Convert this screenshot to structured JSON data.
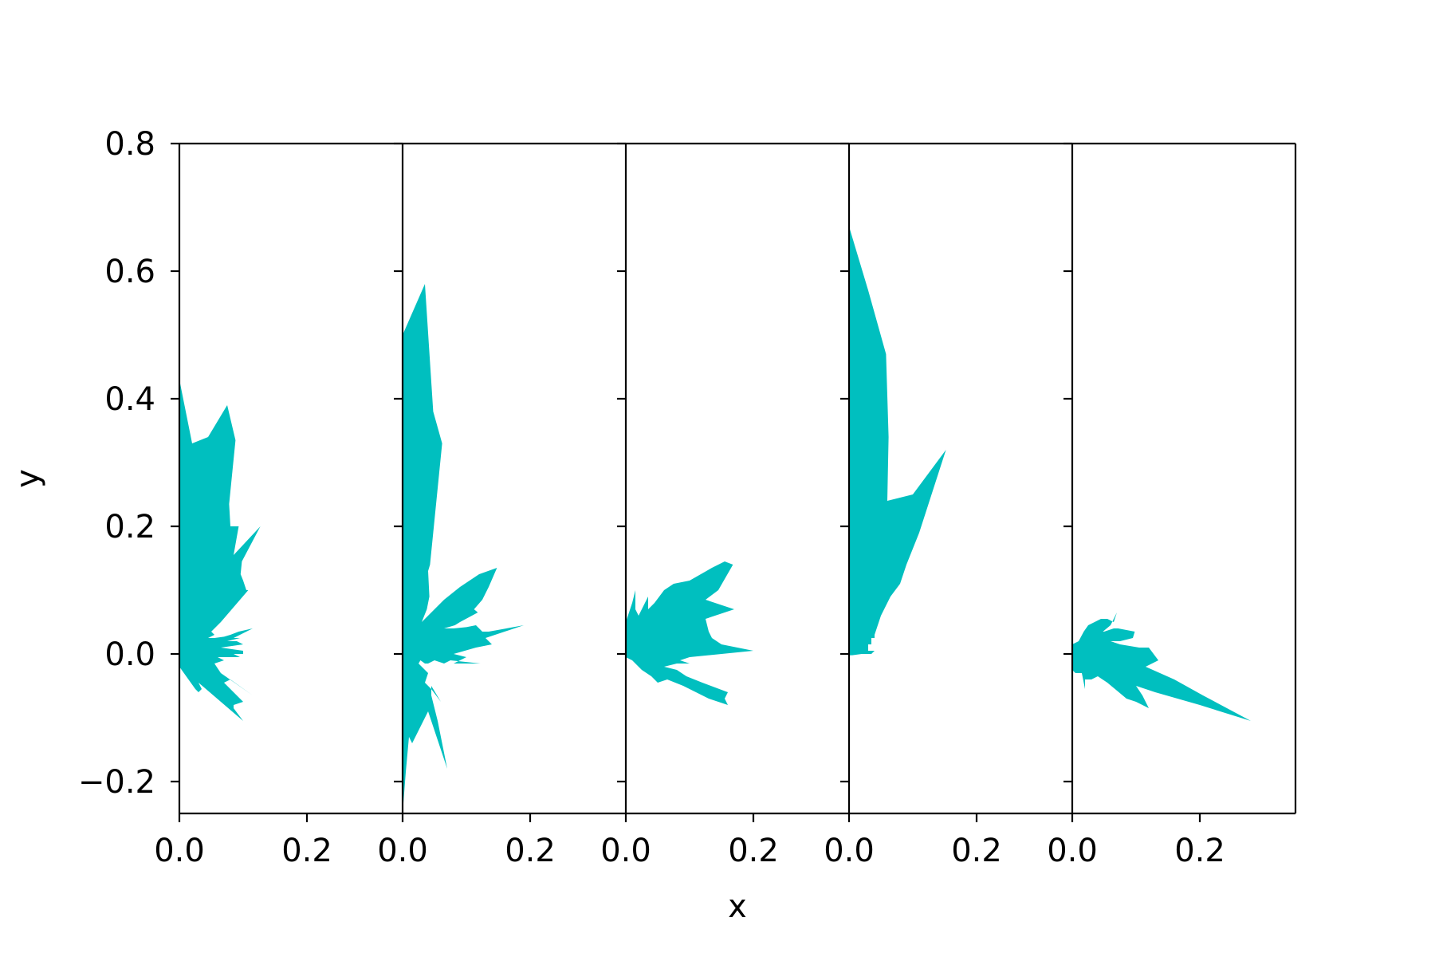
{
  "chart_data": {
    "type": "area",
    "xlabel": "x",
    "ylabel": "y",
    "ylim": [
      -0.25,
      0.8
    ],
    "xlim": [
      0.0,
      0.35
    ],
    "y_ticks": [
      -0.2,
      0.0,
      0.2,
      0.4,
      0.6,
      0.8
    ],
    "y_tick_labels": [
      "−0.2",
      "0.0",
      "0.2",
      "0.4",
      "0.6",
      "0.8"
    ],
    "x_ticks": [
      0.0,
      0.2
    ],
    "x_tick_labels": [
      "0.0",
      "0.2"
    ],
    "fill_color": "#00bfbf",
    "grid": false,
    "panels": [
      {
        "points": [
          [
            0,
            0.43
          ],
          [
            0.02,
            0.33
          ],
          [
            0.045,
            0.34
          ],
          [
            0.075,
            0.39
          ],
          [
            0.088,
            0.335
          ],
          [
            0.078,
            0.235
          ],
          [
            0.08,
            0.2
          ],
          [
            0.093,
            0.2
          ],
          [
            0.085,
            0.155
          ],
          [
            0.127,
            0.2
          ],
          [
            0.098,
            0.145
          ],
          [
            0.096,
            0.125
          ],
          [
            0.1,
            0.115
          ],
          [
            0.105,
            0.1
          ],
          [
            0.108,
            0.1
          ],
          [
            0.065,
            0.05
          ],
          [
            0.05,
            0.035
          ],
          [
            0.055,
            0.03
          ],
          [
            0.045,
            0.025
          ],
          [
            0.055,
            0.025
          ],
          [
            0.07,
            0.027
          ],
          [
            0.08,
            0.03
          ],
          [
            0.093,
            0.035
          ],
          [
            0.115,
            0.04
          ],
          [
            0.085,
            0.025
          ],
          [
            0.095,
            0.025
          ],
          [
            0.075,
            0.02
          ],
          [
            0.09,
            0.02
          ],
          [
            0.1,
            0.015
          ],
          [
            0.065,
            0.01
          ],
          [
            0.1,
            0.005
          ],
          [
            0.1,
            0.0
          ],
          [
            0.065,
            0.0
          ],
          [
            0.085,
            0.0
          ],
          [
            0.095,
            -0.005
          ],
          [
            0.06,
            -0.005
          ],
          [
            0.07,
            -0.01
          ],
          [
            0.055,
            -0.015
          ],
          [
            0.065,
            -0.03
          ],
          [
            0.115,
            -0.065
          ],
          [
            0.08,
            -0.04
          ],
          [
            0.07,
            -0.045
          ],
          [
            0.08,
            -0.055
          ],
          [
            0.1,
            -0.075
          ],
          [
            0.085,
            -0.08
          ],
          [
            0.085,
            -0.085
          ],
          [
            0.1,
            -0.105
          ],
          [
            0.03,
            -0.045
          ],
          [
            0.035,
            -0.055
          ],
          [
            0.03,
            -0.06
          ],
          [
            0.025,
            -0.055
          ],
          [
            0.0,
            -0.02
          ]
        ]
      },
      {
        "points": [
          [
            0,
            0.5
          ],
          [
            0.035,
            0.58
          ],
          [
            0.048,
            0.38
          ],
          [
            0.062,
            0.33
          ],
          [
            0.043,
            0.14
          ],
          [
            0.04,
            0.13
          ],
          [
            0.042,
            0.09
          ],
          [
            0.038,
            0.07
          ],
          [
            0.03,
            0.05
          ],
          [
            0.05,
            0.07
          ],
          [
            0.065,
            0.085
          ],
          [
            0.09,
            0.105
          ],
          [
            0.12,
            0.125
          ],
          [
            0.148,
            0.135
          ],
          [
            0.135,
            0.105
          ],
          [
            0.125,
            0.085
          ],
          [
            0.112,
            0.07
          ],
          [
            0.118,
            0.065
          ],
          [
            0.09,
            0.05
          ],
          [
            0.082,
            0.045
          ],
          [
            0.065,
            0.04
          ],
          [
            0.08,
            0.04
          ],
          [
            0.1,
            0.042
          ],
          [
            0.115,
            0.045
          ],
          [
            0.125,
            0.035
          ],
          [
            0.135,
            0.035
          ],
          [
            0.19,
            0.045
          ],
          [
            0.13,
            0.025
          ],
          [
            0.14,
            0.015
          ],
          [
            0.115,
            0.01
          ],
          [
            0.08,
            0.0
          ],
          [
            0.1,
            -0.005
          ],
          [
            0.08,
            -0.015
          ],
          [
            0.118,
            -0.015
          ],
          [
            0.122,
            -0.015
          ],
          [
            0.075,
            -0.01
          ],
          [
            0.065,
            -0.015
          ],
          [
            0.05,
            -0.01
          ],
          [
            0.04,
            -0.015
          ],
          [
            0.035,
            -0.015
          ],
          [
            0.028,
            -0.01
          ],
          [
            0.025,
            -0.015
          ],
          [
            0.04,
            -0.03
          ],
          [
            0.035,
            -0.045
          ],
          [
            0.045,
            -0.055
          ],
          [
            0.06,
            -0.075
          ],
          [
            0.045,
            -0.05
          ],
          [
            0.045,
            -0.065
          ],
          [
            0.055,
            -0.105
          ],
          [
            0.07,
            -0.18
          ],
          [
            0.04,
            -0.09
          ],
          [
            0.02,
            -0.13
          ],
          [
            0.015,
            -0.14
          ],
          [
            0.01,
            -0.13
          ],
          [
            0.005,
            -0.185
          ],
          [
            0.0,
            -0.25
          ]
        ]
      },
      {
        "points": [
          [
            0,
            0.05
          ],
          [
            0.01,
            0.08
          ],
          [
            0.015,
            0.1
          ],
          [
            0.015,
            0.07
          ],
          [
            0.02,
            0.06
          ],
          [
            0.035,
            0.09
          ],
          [
            0.035,
            0.07
          ],
          [
            0.045,
            0.08
          ],
          [
            0.06,
            0.1
          ],
          [
            0.075,
            0.11
          ],
          [
            0.1,
            0.115
          ],
          [
            0.135,
            0.135
          ],
          [
            0.155,
            0.145
          ],
          [
            0.168,
            0.14
          ],
          [
            0.145,
            0.1
          ],
          [
            0.125,
            0.085
          ],
          [
            0.17,
            0.07
          ],
          [
            0.125,
            0.055
          ],
          [
            0.13,
            0.035
          ],
          [
            0.135,
            0.025
          ],
          [
            0.15,
            0.015
          ],
          [
            0.2,
            0.005
          ],
          [
            0.1,
            -0.005
          ],
          [
            0.085,
            -0.01
          ],
          [
            0.1,
            -0.015
          ],
          [
            0.08,
            -0.015
          ],
          [
            0.06,
            -0.02
          ],
          [
            0.08,
            -0.025
          ],
          [
            0.095,
            -0.035
          ],
          [
            0.12,
            -0.045
          ],
          [
            0.16,
            -0.06
          ],
          [
            0.155,
            -0.07
          ],
          [
            0.16,
            -0.08
          ],
          [
            0.13,
            -0.07
          ],
          [
            0.09,
            -0.05
          ],
          [
            0.065,
            -0.04
          ],
          [
            0.05,
            -0.045
          ],
          [
            0.04,
            -0.035
          ],
          [
            0.025,
            -0.025
          ],
          [
            0.01,
            -0.01
          ],
          [
            0.0,
            -0.005
          ]
        ]
      },
      {
        "points": [
          [
            0,
            0.67
          ],
          [
            0.03,
            0.57
          ],
          [
            0.058,
            0.47
          ],
          [
            0.062,
            0.34
          ],
          [
            0.06,
            0.24
          ],
          [
            0.1,
            0.25
          ],
          [
            0.152,
            0.32
          ],
          [
            0.11,
            0.19
          ],
          [
            0.09,
            0.14
          ],
          [
            0.08,
            0.11
          ],
          [
            0.065,
            0.09
          ],
          [
            0.05,
            0.06
          ],
          [
            0.045,
            0.045
          ],
          [
            0.04,
            0.03
          ],
          [
            0.04,
            0.025
          ],
          [
            0.035,
            0.025
          ],
          [
            0.035,
            0.015
          ],
          [
            0.03,
            0.015
          ],
          [
            0.03,
            0.005
          ],
          [
            0.04,
            0.005
          ],
          [
            0.035,
            0.0
          ],
          [
            0.02,
            0.0
          ],
          [
            0.005,
            -0.002
          ],
          [
            0.0,
            -0.002
          ]
        ]
      },
      {
        "points": [
          [
            0,
            0.015
          ],
          [
            0.01,
            0.02
          ],
          [
            0.018,
            0.035
          ],
          [
            0.025,
            0.045
          ],
          [
            0.035,
            0.05
          ],
          [
            0.045,
            0.055
          ],
          [
            0.055,
            0.055
          ],
          [
            0.065,
            0.05
          ],
          [
            0.07,
            0.065
          ],
          [
            0.06,
            0.045
          ],
          [
            0.048,
            0.035
          ],
          [
            0.05,
            0.035
          ],
          [
            0.065,
            0.04
          ],
          [
            0.072,
            0.04
          ],
          [
            0.098,
            0.035
          ],
          [
            0.095,
            0.025
          ],
          [
            0.075,
            0.02
          ],
          [
            0.06,
            0.02
          ],
          [
            0.075,
            0.015
          ],
          [
            0.105,
            0.01
          ],
          [
            0.12,
            0.01
          ],
          [
            0.135,
            -0.01
          ],
          [
            0.115,
            -0.02
          ],
          [
            0.16,
            -0.04
          ],
          [
            0.205,
            -0.065
          ],
          [
            0.28,
            -0.105
          ],
          [
            0.2,
            -0.08
          ],
          [
            0.13,
            -0.06
          ],
          [
            0.1,
            -0.05
          ],
          [
            0.11,
            -0.065
          ],
          [
            0.12,
            -0.085
          ],
          [
            0.1,
            -0.075
          ],
          [
            0.085,
            -0.07
          ],
          [
            0.055,
            -0.045
          ],
          [
            0.04,
            -0.035
          ],
          [
            0.03,
            -0.04
          ],
          [
            0.02,
            -0.04
          ],
          [
            0.02,
            -0.055
          ],
          [
            0.015,
            -0.03
          ],
          [
            0.005,
            -0.03
          ],
          [
            0.0,
            -0.025
          ]
        ]
      }
    ]
  }
}
